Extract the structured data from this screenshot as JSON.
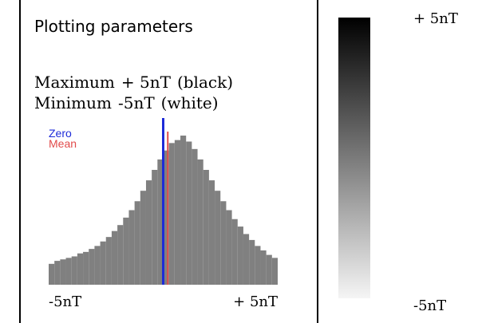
{
  "panel": {
    "title": "Plotting parameters",
    "maximum": {
      "label": "Maximum",
      "value": "+ 5nT",
      "note": "(black)"
    },
    "minimum": {
      "label": "Minimum",
      "value": "-5nT",
      "note": "(white)"
    }
  },
  "colorbar": {
    "top_label": "+ 5nT",
    "bottom_label": "-5nT",
    "from_color": "#f5f5f5",
    "to_color": "#000000"
  },
  "colors": {
    "histogram": "#808080",
    "zero_line": "#1e2bd8",
    "mean_line": "#e14b4b"
  },
  "chart_data": {
    "type": "bar",
    "title": "",
    "xlabel": "",
    "ylabel": "",
    "xlim": [
      -5,
      5
    ],
    "xticks": [
      "-5nT",
      "+ 5nT"
    ],
    "legend": [
      "Zero",
      "Mean"
    ],
    "legend_placement": "top-left",
    "grid": false,
    "zero": 0,
    "mean": 0.2,
    "bin_start": -5,
    "bin_width": 0.25,
    "counts": [
      14,
      16,
      17,
      18,
      19,
      21,
      22,
      24,
      26,
      29,
      32,
      36,
      40,
      45,
      50,
      56,
      63,
      70,
      77,
      84,
      90,
      95,
      97,
      100,
      96,
      91,
      84,
      77,
      70,
      63,
      56,
      50,
      44,
      39,
      34,
      30,
      26,
      23,
      20,
      18
    ]
  }
}
